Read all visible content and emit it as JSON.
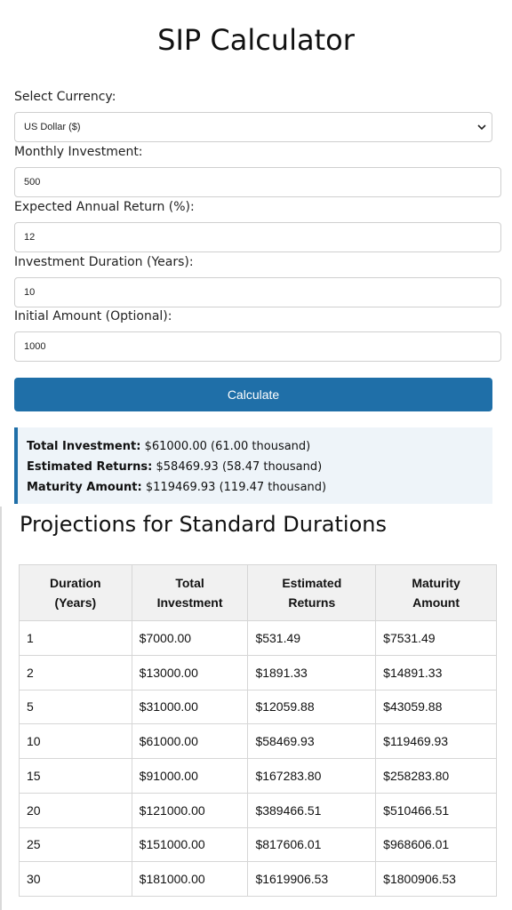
{
  "page": {
    "title": "SIP Calculator"
  },
  "form": {
    "currency": {
      "label": "Select Currency:",
      "value": "US Dollar ($)"
    },
    "monthly": {
      "label": "Monthly Investment:",
      "value": "500"
    },
    "annual_return": {
      "label": "Expected Annual Return (%):",
      "value": "12"
    },
    "duration": {
      "label": "Investment Duration (Years):",
      "value": "10"
    },
    "initial": {
      "label": "Initial Amount (Optional):",
      "value": "1000"
    },
    "calculate_label": "Calculate"
  },
  "results": {
    "total_investment_label": "Total Investment:",
    "total_investment_value": "$61000.00 (61.00 thousand)",
    "estimated_returns_label": "Estimated Returns:",
    "estimated_returns_value": "$58469.93 (58.47 thousand)",
    "maturity_label": "Maturity Amount:",
    "maturity_value": "$119469.93 (119.47 thousand)",
    "accent_color": "#1f6fa8"
  },
  "projections": {
    "title": "Projections for Standard Durations",
    "headers": [
      [
        "Duration",
        "(Years)"
      ],
      [
        "Total",
        "Investment"
      ],
      [
        "Estimated",
        "Returns"
      ],
      [
        "Maturity",
        "Amount"
      ]
    ],
    "rows": [
      [
        "1",
        "$7000.00",
        "$531.49",
        "$7531.49"
      ],
      [
        "2",
        "$13000.00",
        "$1891.33",
        "$14891.33"
      ],
      [
        "5",
        "$31000.00",
        "$12059.88",
        "$43059.88"
      ],
      [
        "10",
        "$61000.00",
        "$58469.93",
        "$119469.93"
      ],
      [
        "15",
        "$91000.00",
        "$167283.80",
        "$258283.80"
      ],
      [
        "20",
        "$121000.00",
        "$389466.51",
        "$510466.51"
      ],
      [
        "25",
        "$151000.00",
        "$817606.01",
        "$968606.01"
      ],
      [
        "30",
        "$181000.00",
        "$1619906.53",
        "$1800906.53"
      ]
    ]
  },
  "icons": {
    "select_arrow": "chevron-down-icon"
  }
}
